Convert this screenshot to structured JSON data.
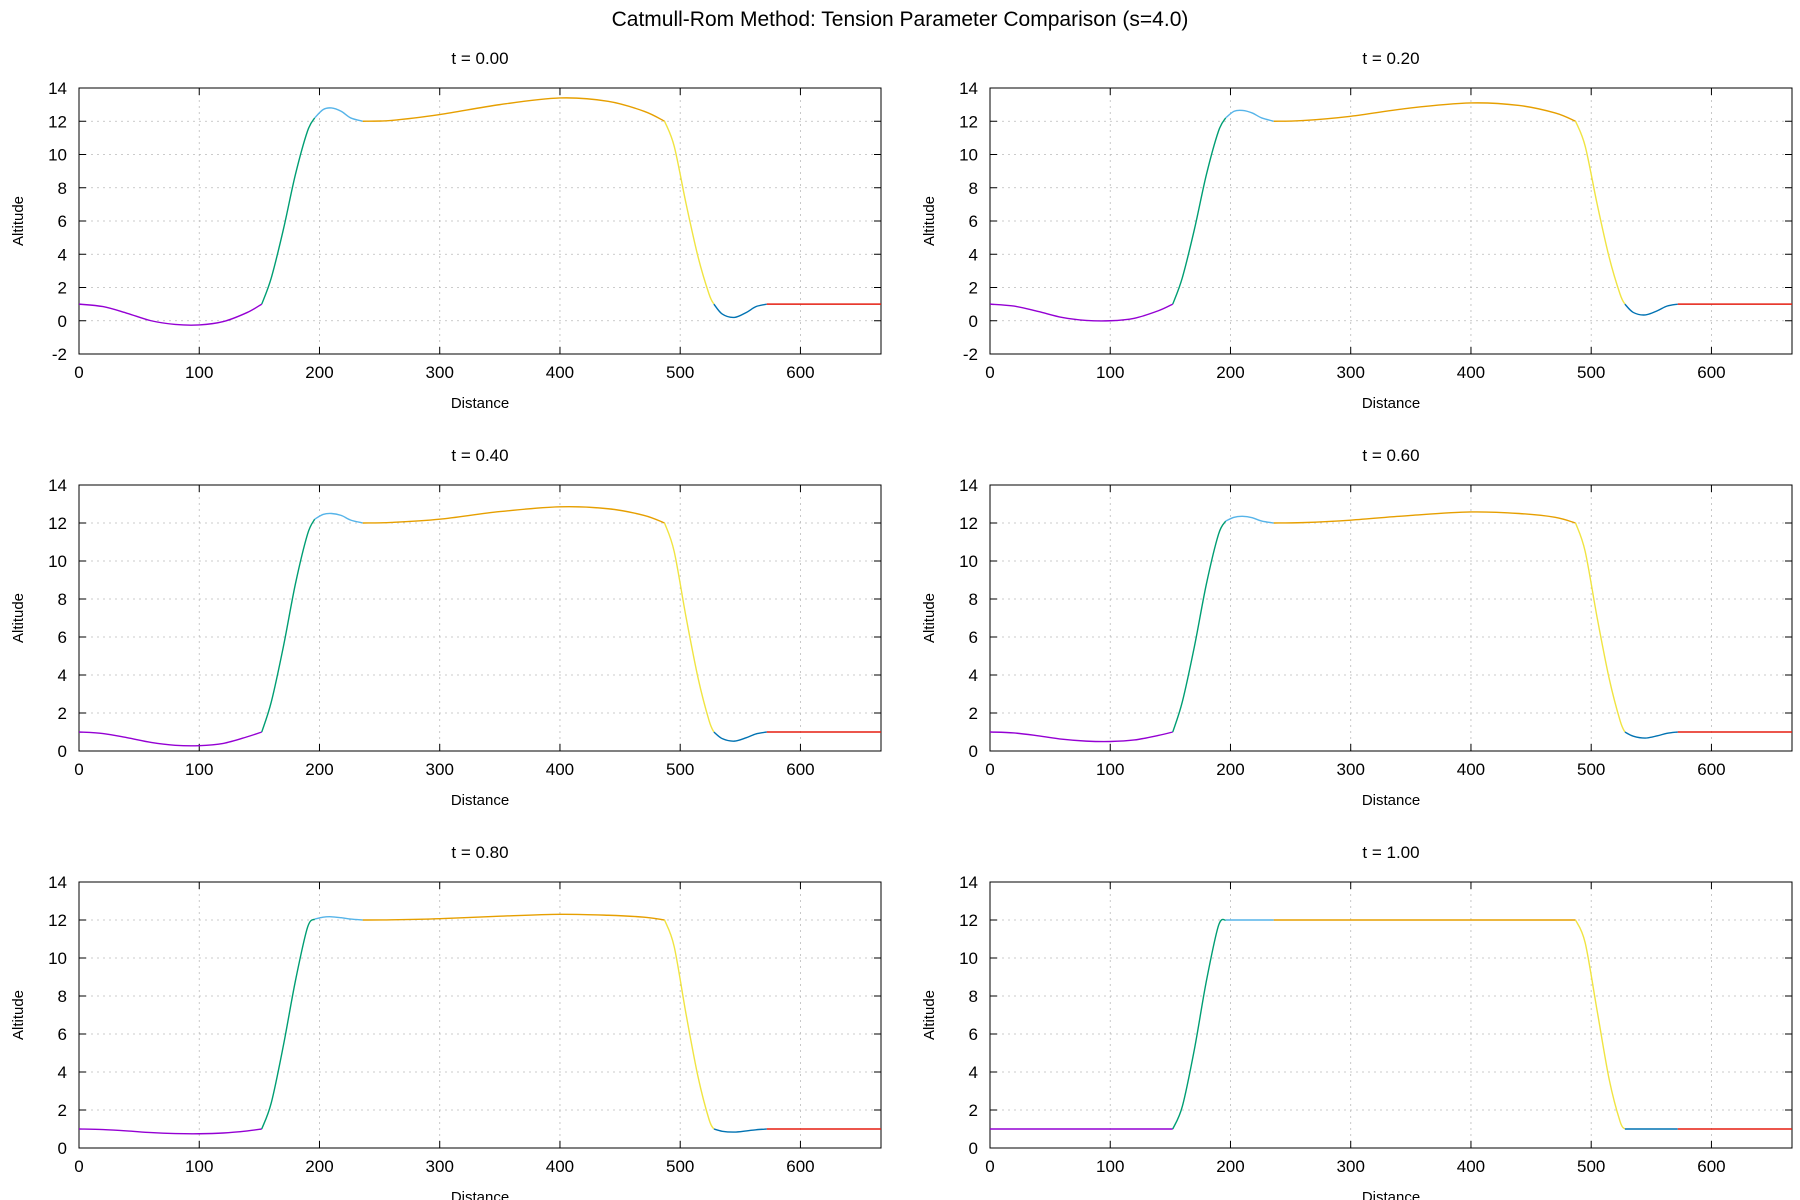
{
  "title": "Catmull-Rom Method: Tension Parameter Comparison (s=4.0)",
  "colors": {
    "segments": [
      "#9400d3",
      "#009e73",
      "#56b4e9",
      "#e69f00",
      "#f0e442",
      "#0072b2",
      "#e51e10"
    ],
    "grid": "#bbbbbb",
    "axis": "#000000"
  },
  "chart_data": [
    {
      "type": "line",
      "title": "t = 0.00",
      "xlabel": "Distance",
      "ylabel": "Altitude",
      "xlim": [
        0,
        667
      ],
      "ylim": [
        -2,
        14
      ],
      "xticks": [
        0,
        100,
        200,
        300,
        400,
        500,
        600
      ],
      "yticks": [
        -2,
        0,
        2,
        4,
        6,
        8,
        10,
        12,
        14
      ],
      "grid": true,
      "series": [
        {
          "x": [
            0,
            20,
            40,
            60,
            80,
            100,
            120,
            140,
            152
          ],
          "y": [
            1.0,
            0.85,
            0.45,
            0.0,
            -0.22,
            -0.25,
            -0.05,
            0.5,
            1.0
          ],
          "color": "#9400d3"
        },
        {
          "x": [
            152,
            160,
            170,
            180,
            190,
            196
          ],
          "y": [
            1.0,
            2.6,
            5.5,
            8.8,
            11.4,
            12.2
          ],
          "color": "#009e73"
        },
        {
          "x": [
            196,
            203,
            210,
            218,
            226,
            236
          ],
          "y": [
            12.2,
            12.7,
            12.8,
            12.6,
            12.2,
            12.0
          ],
          "color": "#56b4e9"
        },
        {
          "x": [
            236,
            260,
            300,
            350,
            400,
            440,
            470,
            487
          ],
          "y": [
            12.0,
            12.05,
            12.4,
            13.0,
            13.4,
            13.2,
            12.6,
            12.0
          ],
          "color": "#e69f00"
        },
        {
          "x": [
            487,
            495,
            505,
            515,
            524,
            528
          ],
          "y": [
            12.0,
            10.5,
            7.0,
            3.8,
            1.6,
            1.0
          ],
          "color": "#f0e442"
        },
        {
          "x": [
            528,
            535,
            545,
            555,
            563,
            572
          ],
          "y": [
            1.0,
            0.4,
            0.2,
            0.5,
            0.85,
            1.0
          ],
          "color": "#0072b2"
        },
        {
          "x": [
            572,
            667
          ],
          "y": [
            1.0,
            1.0
          ],
          "color": "#e51e10"
        }
      ]
    },
    {
      "type": "line",
      "title": "t = 0.20",
      "xlabel": "Distance",
      "ylabel": "Altitude",
      "xlim": [
        0,
        667
      ],
      "ylim": [
        -2,
        14
      ],
      "xticks": [
        0,
        100,
        200,
        300,
        400,
        500,
        600
      ],
      "yticks": [
        -2,
        0,
        2,
        4,
        6,
        8,
        10,
        12,
        14
      ],
      "grid": true,
      "series": [
        {
          "x": [
            0,
            20,
            40,
            60,
            80,
            100,
            120,
            140,
            152
          ],
          "y": [
            1.0,
            0.88,
            0.56,
            0.2,
            0.02,
            0.0,
            0.15,
            0.6,
            1.0
          ],
          "color": "#9400d3"
        },
        {
          "x": [
            152,
            160,
            170,
            180,
            190,
            196
          ],
          "y": [
            1.0,
            2.6,
            5.5,
            8.8,
            11.4,
            12.2
          ],
          "color": "#009e73"
        },
        {
          "x": [
            196,
            203,
            210,
            218,
            226,
            236
          ],
          "y": [
            12.2,
            12.6,
            12.65,
            12.5,
            12.2,
            12.0
          ],
          "color": "#56b4e9"
        },
        {
          "x": [
            236,
            260,
            300,
            350,
            400,
            440,
            470,
            487
          ],
          "y": [
            12.0,
            12.04,
            12.3,
            12.8,
            13.1,
            12.95,
            12.5,
            12.0
          ],
          "color": "#e69f00"
        },
        {
          "x": [
            487,
            495,
            505,
            515,
            524,
            528
          ],
          "y": [
            12.0,
            10.5,
            7.0,
            3.8,
            1.6,
            1.0
          ],
          "color": "#f0e442"
        },
        {
          "x": [
            528,
            535,
            545,
            555,
            563,
            572
          ],
          "y": [
            1.0,
            0.5,
            0.35,
            0.6,
            0.88,
            1.0
          ],
          "color": "#0072b2"
        },
        {
          "x": [
            572,
            667
          ],
          "y": [
            1.0,
            1.0
          ],
          "color": "#e51e10"
        }
      ]
    },
    {
      "type": "line",
      "title": "t = 0.40",
      "xlabel": "Distance",
      "ylabel": "Altitude",
      "xlim": [
        0,
        667
      ],
      "ylim": [
        0,
        14
      ],
      "xticks": [
        0,
        100,
        200,
        300,
        400,
        500,
        600
      ],
      "yticks": [
        0,
        2,
        4,
        6,
        8,
        10,
        12,
        14
      ],
      "grid": true,
      "series": [
        {
          "x": [
            0,
            20,
            40,
            60,
            80,
            100,
            120,
            140,
            152
          ],
          "y": [
            1.0,
            0.92,
            0.7,
            0.45,
            0.3,
            0.28,
            0.4,
            0.75,
            1.0
          ],
          "color": "#9400d3"
        },
        {
          "x": [
            152,
            160,
            170,
            180,
            190,
            196
          ],
          "y": [
            1.0,
            2.6,
            5.5,
            8.8,
            11.4,
            12.2
          ],
          "color": "#009e73"
        },
        {
          "x": [
            196,
            203,
            210,
            218,
            226,
            236
          ],
          "y": [
            12.2,
            12.45,
            12.5,
            12.4,
            12.15,
            12.0
          ],
          "color": "#56b4e9"
        },
        {
          "x": [
            236,
            260,
            300,
            350,
            400,
            440,
            470,
            487
          ],
          "y": [
            12.0,
            12.03,
            12.2,
            12.6,
            12.85,
            12.75,
            12.4,
            12.0
          ],
          "color": "#e69f00"
        },
        {
          "x": [
            487,
            495,
            505,
            515,
            524,
            528
          ],
          "y": [
            12.0,
            10.5,
            7.0,
            3.8,
            1.6,
            1.0
          ],
          "color": "#f0e442"
        },
        {
          "x": [
            528,
            535,
            545,
            555,
            563,
            572
          ],
          "y": [
            1.0,
            0.65,
            0.52,
            0.7,
            0.9,
            1.0
          ],
          "color": "#0072b2"
        },
        {
          "x": [
            572,
            667
          ],
          "y": [
            1.0,
            1.0
          ],
          "color": "#e51e10"
        }
      ]
    },
    {
      "type": "line",
      "title": "t = 0.60",
      "xlabel": "Distance",
      "ylabel": "Altitude",
      "xlim": [
        0,
        667
      ],
      "ylim": [
        0,
        14
      ],
      "xticks": [
        0,
        100,
        200,
        300,
        400,
        500,
        600
      ],
      "yticks": [
        0,
        2,
        4,
        6,
        8,
        10,
        12,
        14
      ],
      "grid": true,
      "series": [
        {
          "x": [
            0,
            20,
            40,
            60,
            80,
            100,
            120,
            140,
            152
          ],
          "y": [
            1.0,
            0.95,
            0.8,
            0.62,
            0.52,
            0.5,
            0.58,
            0.82,
            1.0
          ],
          "color": "#9400d3"
        },
        {
          "x": [
            152,
            160,
            170,
            180,
            190,
            196
          ],
          "y": [
            1.0,
            2.6,
            5.5,
            8.8,
            11.4,
            12.1
          ],
          "color": "#009e73"
        },
        {
          "x": [
            196,
            203,
            210,
            218,
            226,
            236
          ],
          "y": [
            12.1,
            12.3,
            12.35,
            12.28,
            12.1,
            12.0
          ],
          "color": "#56b4e9"
        },
        {
          "x": [
            236,
            260,
            300,
            350,
            400,
            440,
            470,
            487
          ],
          "y": [
            12.0,
            12.02,
            12.15,
            12.4,
            12.58,
            12.5,
            12.3,
            12.0
          ],
          "color": "#e69f00"
        },
        {
          "x": [
            487,
            495,
            505,
            515,
            524,
            528
          ],
          "y": [
            12.0,
            10.5,
            7.0,
            3.8,
            1.6,
            1.0
          ],
          "color": "#f0e442"
        },
        {
          "x": [
            528,
            535,
            545,
            555,
            563,
            572
          ],
          "y": [
            1.0,
            0.78,
            0.68,
            0.8,
            0.93,
            1.0
          ],
          "color": "#0072b2"
        },
        {
          "x": [
            572,
            667
          ],
          "y": [
            1.0,
            1.0
          ],
          "color": "#e51e10"
        }
      ]
    },
    {
      "type": "line",
      "title": "t = 0.80",
      "xlabel": "Distance",
      "ylabel": "Altitude",
      "xlim": [
        0,
        667
      ],
      "ylim": [
        0,
        14
      ],
      "xticks": [
        0,
        100,
        200,
        300,
        400,
        500,
        600
      ],
      "yticks": [
        0,
        2,
        4,
        6,
        8,
        10,
        12,
        14
      ],
      "grid": true,
      "series": [
        {
          "x": [
            0,
            20,
            40,
            60,
            80,
            100,
            120,
            140,
            152
          ],
          "y": [
            1.0,
            0.97,
            0.9,
            0.81,
            0.76,
            0.75,
            0.79,
            0.9,
            1.0
          ],
          "color": "#9400d3"
        },
        {
          "x": [
            152,
            160,
            170,
            180,
            190,
            196
          ],
          "y": [
            1.0,
            2.4,
            5.4,
            8.8,
            11.6,
            12.05
          ],
          "color": "#009e73"
        },
        {
          "x": [
            196,
            203,
            210,
            218,
            226,
            236
          ],
          "y": [
            12.05,
            12.15,
            12.17,
            12.12,
            12.05,
            12.0
          ],
          "color": "#56b4e9"
        },
        {
          "x": [
            236,
            260,
            300,
            350,
            400,
            440,
            470,
            487
          ],
          "y": [
            12.0,
            12.01,
            12.07,
            12.2,
            12.3,
            12.25,
            12.15,
            12.0
          ],
          "color": "#e69f00"
        },
        {
          "x": [
            487,
            495,
            505,
            515,
            524,
            528
          ],
          "y": [
            12.0,
            10.6,
            7.0,
            3.7,
            1.5,
            1.0
          ],
          "color": "#f0e442"
        },
        {
          "x": [
            528,
            535,
            545,
            555,
            563,
            572
          ],
          "y": [
            1.0,
            0.88,
            0.84,
            0.9,
            0.96,
            1.0
          ],
          "color": "#0072b2"
        },
        {
          "x": [
            572,
            667
          ],
          "y": [
            1.0,
            1.0
          ],
          "color": "#e51e10"
        }
      ]
    },
    {
      "type": "line",
      "title": "t = 1.00",
      "xlabel": "Distance",
      "ylabel": "Altitude",
      "xlim": [
        0,
        667
      ],
      "ylim": [
        0,
        14
      ],
      "xticks": [
        0,
        100,
        200,
        300,
        400,
        500,
        600
      ],
      "yticks": [
        0,
        2,
        4,
        6,
        8,
        10,
        12,
        14
      ],
      "grid": true,
      "series": [
        {
          "x": [
            0,
            152
          ],
          "y": [
            1.0,
            1.0
          ],
          "color": "#9400d3"
        },
        {
          "x": [
            152,
            160,
            170,
            180,
            190,
            196
          ],
          "y": [
            1.0,
            2.2,
            5.2,
            8.8,
            11.7,
            12.0
          ],
          "color": "#009e73"
        },
        {
          "x": [
            196,
            236
          ],
          "y": [
            12.0,
            12.0
          ],
          "color": "#56b4e9"
        },
        {
          "x": [
            236,
            487
          ],
          "y": [
            12.0,
            12.0
          ],
          "color": "#e69f00"
        },
        {
          "x": [
            487,
            495,
            505,
            515,
            524,
            528
          ],
          "y": [
            12.0,
            10.8,
            7.2,
            3.6,
            1.4,
            1.0
          ],
          "color": "#f0e442"
        },
        {
          "x": [
            528,
            572
          ],
          "y": [
            1.0,
            1.0
          ],
          "color": "#0072b2"
        },
        {
          "x": [
            572,
            667
          ],
          "y": [
            1.0,
            1.0
          ],
          "color": "#e51e10"
        }
      ]
    }
  ]
}
